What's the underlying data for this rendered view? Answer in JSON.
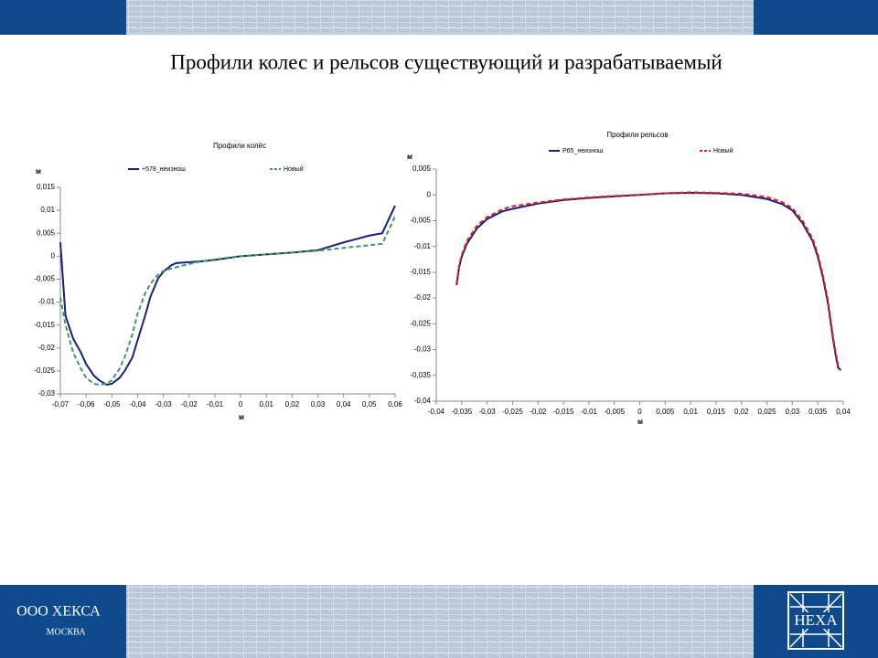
{
  "title": "Профили колес и рельсов существующий и разрабатываемый",
  "footer": {
    "company": "ООО ХЕКСА",
    "city": "МОСКВА",
    "logo": "HEXA"
  },
  "chart_data": [
    {
      "type": "line",
      "title": "Профили колёс",
      "x_label": "м",
      "y_label": "м",
      "x": [
        -0.07,
        -0.068,
        -0.065,
        -0.062,
        -0.06,
        -0.057,
        -0.055,
        -0.052,
        -0.05,
        -0.047,
        -0.045,
        -0.042,
        -0.04,
        -0.037,
        -0.035,
        -0.032,
        -0.03,
        -0.027,
        -0.025,
        -0.02,
        -0.015,
        -0.01,
        -0.005,
        0,
        0.01,
        0.02,
        0.03,
        0.04,
        0.05,
        0.055,
        0.06
      ],
      "series": [
        {
          "name": "+578_неизнош",
          "color": "#1a1f7a",
          "style": "solid",
          "values": [
            0.003,
            -0.013,
            -0.018,
            -0.021,
            -0.0235,
            -0.026,
            -0.027,
            -0.028,
            -0.0278,
            -0.0265,
            -0.025,
            -0.022,
            -0.0183,
            -0.0128,
            -0.0088,
            -0.0048,
            -0.0034,
            -0.002,
            -0.0015,
            -0.0013,
            -0.0011,
            -0.0008,
            -0.0004,
            0,
            0.0004,
            0.0008,
            0.0013,
            0.003,
            0.0045,
            0.005,
            0.011
          ]
        },
        {
          "name": "Новый",
          "color": "#3c9a5f",
          "style": "dashed",
          "values": [
            -0.009,
            -0.015,
            -0.021,
            -0.0245,
            -0.0265,
            -0.0278,
            -0.028,
            -0.0278,
            -0.027,
            -0.0245,
            -0.022,
            -0.017,
            -0.0125,
            -0.008,
            -0.006,
            -0.004,
            -0.0032,
            -0.0027,
            -0.0024,
            -0.0017,
            -0.0011,
            -0.0007,
            -0.0003,
            0,
            0.0004,
            0.0008,
            0.0012,
            0.0018,
            0.0024,
            0.0027,
            0.0087
          ]
        }
      ],
      "xlim": [
        -0.07,
        0.06
      ],
      "xticks": [
        {
          "value": -0.07,
          "label": "-0,07"
        },
        {
          "value": -0.06,
          "label": "-0,06"
        },
        {
          "value": -0.05,
          "label": "-0,05"
        },
        {
          "value": -0.04,
          "label": "-0,04"
        },
        {
          "value": -0.03,
          "label": "-0,03"
        },
        {
          "value": -0.02,
          "label": "-0,02"
        },
        {
          "value": -0.01,
          "label": "-0,01"
        },
        0,
        {
          "value": 0.01,
          "label": "0,01"
        },
        {
          "value": 0.02,
          "label": "0,02"
        },
        {
          "value": 0.03,
          "label": "0,03"
        },
        {
          "value": 0.04,
          "label": "0,04"
        },
        {
          "value": 0.05,
          "label": "0,05"
        },
        {
          "value": 0.06,
          "label": "0,06"
        }
      ],
      "ylim": [
        -0.03,
        0.015
      ],
      "yticks": [
        {
          "value": -0.03,
          "label": "-0,03"
        },
        {
          "value": -0.025,
          "label": "-0,025"
        },
        {
          "value": -0.02,
          "label": "-0,02"
        },
        {
          "value": -0.015,
          "label": "-0,015"
        },
        {
          "value": -0.01,
          "label": "-0,01"
        },
        {
          "value": -0.005,
          "label": "-0,005"
        },
        0,
        {
          "value": 0.005,
          "label": "0,005"
        },
        {
          "value": 0.01,
          "label": "0,01"
        },
        {
          "value": 0.015,
          "label": "0,015"
        }
      ]
    },
    {
      "type": "line",
      "title": "Профили рельсов",
      "x_label": "м",
      "y_label": "м",
      "x": [
        -0.036,
        -0.0355,
        -0.035,
        -0.034,
        -0.032,
        -0.03,
        -0.027,
        -0.025,
        -0.02,
        -0.015,
        -0.01,
        -0.005,
        0,
        0.005,
        0.01,
        0.015,
        0.02,
        0.025,
        0.028,
        0.03,
        0.032,
        0.034,
        0.035,
        0.036,
        0.037,
        0.038,
        0.0385,
        0.039,
        0.0395
      ],
      "series": [
        {
          "name": "Р65_неизнош",
          "color": "#1a1f7a",
          "style": "solid",
          "values": [
            -0.0175,
            -0.014,
            -0.012,
            -0.0095,
            -0.0065,
            -0.0047,
            -0.0032,
            -0.0027,
            -0.0017,
            -0.001,
            -0.0006,
            -0.0003,
            0,
            0.0003,
            0.0004,
            0.0003,
            0,
            -0.0008,
            -0.0018,
            -0.003,
            -0.0055,
            -0.009,
            -0.012,
            -0.016,
            -0.021,
            -0.028,
            -0.031,
            -0.0335,
            -0.034
          ]
        },
        {
          "name": "Новый",
          "color": "#e0201e",
          "style": "dashed",
          "values": [
            -0.0172,
            -0.0137,
            -0.0117,
            -0.009,
            -0.006,
            -0.0043,
            -0.0028,
            -0.0022,
            -0.0015,
            -0.0009,
            -0.0005,
            -0.0002,
            0,
            0.0003,
            0.0005,
            0.0004,
            0.0002,
            -0.0004,
            -0.0014,
            -0.0026,
            -0.005,
            -0.0085,
            -0.0115,
            -0.0155,
            -0.0205,
            -0.0275,
            -0.0305,
            -0.033,
            -0.0335
          ]
        }
      ],
      "xlim": [
        -0.04,
        0.04
      ],
      "xticks": [
        {
          "value": -0.04,
          "label": "-0,04"
        },
        {
          "value": -0.035,
          "label": "-0,035"
        },
        {
          "value": -0.03,
          "label": "-0,03"
        },
        {
          "value": -0.025,
          "label": "-0,025"
        },
        {
          "value": -0.02,
          "label": "-0,02"
        },
        {
          "value": -0.015,
          "label": "-0,015"
        },
        {
          "value": -0.01,
          "label": "-0,01"
        },
        {
          "value": -0.005,
          "label": "-0,005"
        },
        0,
        {
          "value": 0.005,
          "label": "0,005"
        },
        {
          "value": 0.01,
          "label": "0,01"
        },
        {
          "value": 0.015,
          "label": "0,015"
        },
        {
          "value": 0.02,
          "label": "0,02"
        },
        {
          "value": 0.025,
          "label": "0,025"
        },
        {
          "value": 0.03,
          "label": "0,03"
        },
        {
          "value": 0.035,
          "label": "0,035"
        },
        {
          "value": 0.04,
          "label": "0,04"
        }
      ],
      "ylim": [
        -0.04,
        0.005
      ],
      "yticks": [
        {
          "value": -0.04,
          "label": "-0,04"
        },
        {
          "value": -0.035,
          "label": "-0,035"
        },
        {
          "value": -0.03,
          "label": "-0,03"
        },
        {
          "value": -0.025,
          "label": "-0,025"
        },
        {
          "value": -0.02,
          "label": "-0,02"
        },
        {
          "value": -0.015,
          "label": "-0,015"
        },
        {
          "value": -0.01,
          "label": "-0,01"
        },
        {
          "value": -0.005,
          "label": "-0,005"
        },
        0,
        {
          "value": 0.005,
          "label": "0,005"
        }
      ]
    }
  ]
}
